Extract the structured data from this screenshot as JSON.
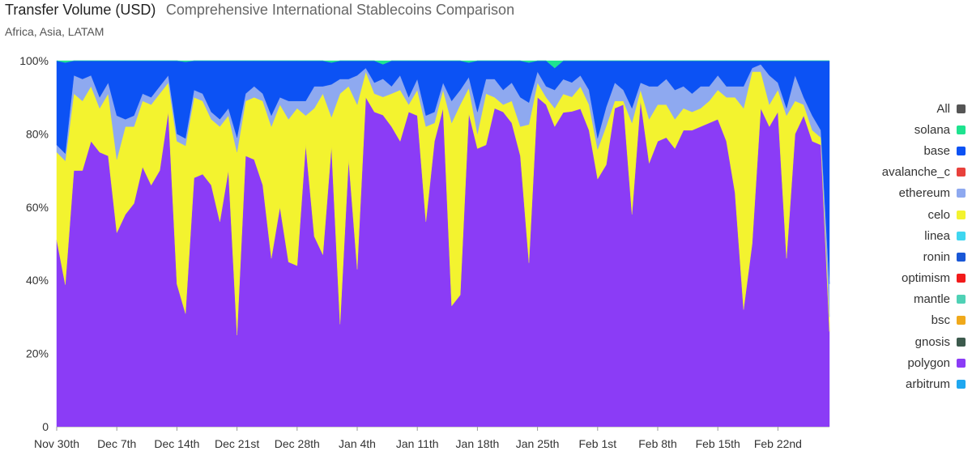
{
  "header": {
    "title": "Transfer Volume (USD)",
    "subtitle": "Comprehensive International Stablecoins Comparison",
    "regions": "Africa, Asia, LATAM"
  },
  "legend": [
    {
      "label": "All",
      "color": "#555555"
    },
    {
      "label": "solana",
      "color": "#1ee38f"
    },
    {
      "label": "base",
      "color": "#0c52f4"
    },
    {
      "label": "avalanche_c",
      "color": "#e8413c"
    },
    {
      "label": "ethereum",
      "color": "#8ea9f0"
    },
    {
      "label": "celo",
      "color": "#f3f32f"
    },
    {
      "label": "linea",
      "color": "#3fd6f0"
    },
    {
      "label": "ronin",
      "color": "#1957d6"
    },
    {
      "label": "optimism",
      "color": "#f21b1b"
    },
    {
      "label": "mantle",
      "color": "#4fd1b5"
    },
    {
      "label": "bsc",
      "color": "#f0a91b"
    },
    {
      "label": "gnosis",
      "color": "#3c5a4d"
    },
    {
      "label": "polygon",
      "color": "#8b3cf6"
    },
    {
      "label": "arbitrum",
      "color": "#1fa7f0"
    }
  ],
  "chart_data": {
    "type": "area",
    "stacked": true,
    "normalized": true,
    "title": "Transfer Volume (USD)",
    "ylim": [
      0,
      100
    ],
    "y_ticks": [
      "0",
      "20%",
      "40%",
      "60%",
      "80%",
      "100%"
    ],
    "x_tick_labels": [
      "Nov 30th",
      "Dec 7th",
      "Dec 14th",
      "Dec 21st",
      "Dec 28th",
      "Jan 4th",
      "Jan 11th",
      "Jan 18th",
      "Jan 25th",
      "Feb 1st",
      "Feb 8th",
      "Feb 15th",
      "Feb 22nd"
    ],
    "x_tick_day_index": [
      0,
      7,
      14,
      21,
      28,
      35,
      42,
      49,
      56,
      63,
      70,
      77,
      84
    ],
    "days": 91,
    "series": [
      {
        "name": "polygon",
        "color": "#8b3cf6",
        "values": [
          51,
          39,
          70,
          70,
          78,
          75,
          74,
          53,
          58,
          61,
          71,
          66,
          70,
          86,
          39,
          31,
          68,
          69,
          66,
          56,
          70,
          25,
          74,
          73,
          66,
          46,
          60,
          45,
          44,
          77,
          52,
          47,
          77,
          28,
          73,
          43,
          90,
          86,
          86,
          82,
          78,
          86,
          85,
          56,
          78,
          87,
          33,
          36,
          86,
          76,
          77,
          87,
          86,
          83,
          74,
          45,
          90,
          88,
          82,
          85,
          87,
          86,
          81,
          67,
          68,
          87,
          88,
          58,
          89,
          72,
          78,
          79,
          76,
          81,
          81,
          82,
          83,
          84,
          78,
          64,
          32,
          50,
          87,
          82,
          86,
          46,
          80,
          85,
          78,
          77,
          26
        ]
      },
      {
        "name": "celo",
        "color": "#f3f32f",
        "values": [
          24,
          34,
          21,
          19,
          15,
          12,
          17,
          20,
          24,
          21,
          18,
          22,
          21,
          8,
          39,
          46,
          22,
          20,
          18,
          26,
          15,
          50,
          15,
          17,
          23,
          36,
          28,
          39,
          43,
          8,
          35,
          44,
          8,
          63,
          20,
          45,
          7,
          5,
          5,
          9,
          14,
          2,
          7,
          26,
          5,
          5,
          50,
          52,
          7,
          4,
          14,
          3,
          2,
          6,
          8,
          38,
          4,
          2,
          5,
          5,
          4,
          6,
          7,
          8,
          10,
          2,
          1,
          25,
          3,
          12,
          10,
          9,
          8,
          6,
          5,
          5,
          6,
          8,
          12,
          26,
          55,
          47,
          10,
          6,
          6,
          39,
          9,
          3,
          3,
          2,
          4
        ]
      },
      {
        "name": "ethereum",
        "color": "#8ea9f0",
        "values": [
          2,
          2,
          5,
          6,
          3,
          3,
          3,
          12,
          2,
          3,
          2,
          2,
          2,
          2,
          2,
          2,
          2,
          2,
          2,
          2,
          2,
          4,
          2,
          3,
          2,
          3,
          2,
          5,
          2,
          4,
          6,
          2,
          9,
          4,
          2,
          8,
          1,
          3,
          5,
          2,
          4,
          2,
          3,
          3,
          3,
          2,
          6,
          4,
          3,
          6,
          4,
          5,
          4,
          5,
          8,
          6,
          3,
          3,
          5,
          4,
          4,
          3,
          4,
          3,
          5,
          5,
          3,
          4,
          2,
          9,
          5,
          7,
          8,
          6,
          5,
          6,
          4,
          4,
          3,
          3,
          6,
          1,
          2,
          8,
          2,
          2,
          7,
          2,
          4,
          2,
          9
        ]
      },
      {
        "name": "base",
        "color": "#0c52f4",
        "values": [
          23,
          25,
          4,
          5,
          4,
          10,
          6,
          15,
          16,
          15,
          9,
          10,
          7,
          4,
          20,
          21,
          8,
          9,
          14,
          16,
          13,
          21,
          9,
          7,
          9,
          15,
          10,
          11,
          11,
          11,
          7,
          7,
          6,
          5,
          5,
          4,
          2,
          6,
          4,
          7,
          4,
          10,
          5,
          15,
          14,
          6,
          11,
          8,
          4,
          14,
          5,
          5,
          8,
          6,
          10,
          11,
          3,
          7,
          6,
          5,
          6,
          4,
          8,
          21,
          12,
          6,
          8,
          13,
          6,
          7,
          7,
          5,
          8,
          7,
          9,
          7,
          7,
          4,
          7,
          7,
          7,
          2,
          1,
          4,
          6,
          13,
          4,
          10,
          15,
          19,
          61
        ]
      },
      {
        "name": "solana",
        "color": "#1ee38f",
        "values": [
          0,
          0.5,
          0,
          0,
          0,
          0,
          0,
          0,
          0,
          0,
          0,
          0,
          0,
          0,
          0,
          0.3,
          0,
          0,
          0,
          0,
          0,
          0,
          0,
          0,
          0,
          0,
          0,
          0,
          0,
          0,
          0,
          0,
          0.5,
          0,
          0,
          0,
          0,
          0,
          1,
          0,
          0,
          0,
          0,
          0,
          0,
          0,
          0,
          0,
          0.5,
          0,
          0,
          0,
          0,
          0,
          0,
          0.5,
          0,
          0,
          2,
          0,
          0,
          0,
          0,
          0,
          0,
          0,
          0,
          0,
          0,
          0,
          0,
          0,
          0,
          0,
          0,
          0,
          0,
          0,
          0,
          0,
          0,
          0,
          0,
          0,
          0,
          0,
          0,
          0,
          0,
          0,
          0
        ]
      }
    ]
  }
}
